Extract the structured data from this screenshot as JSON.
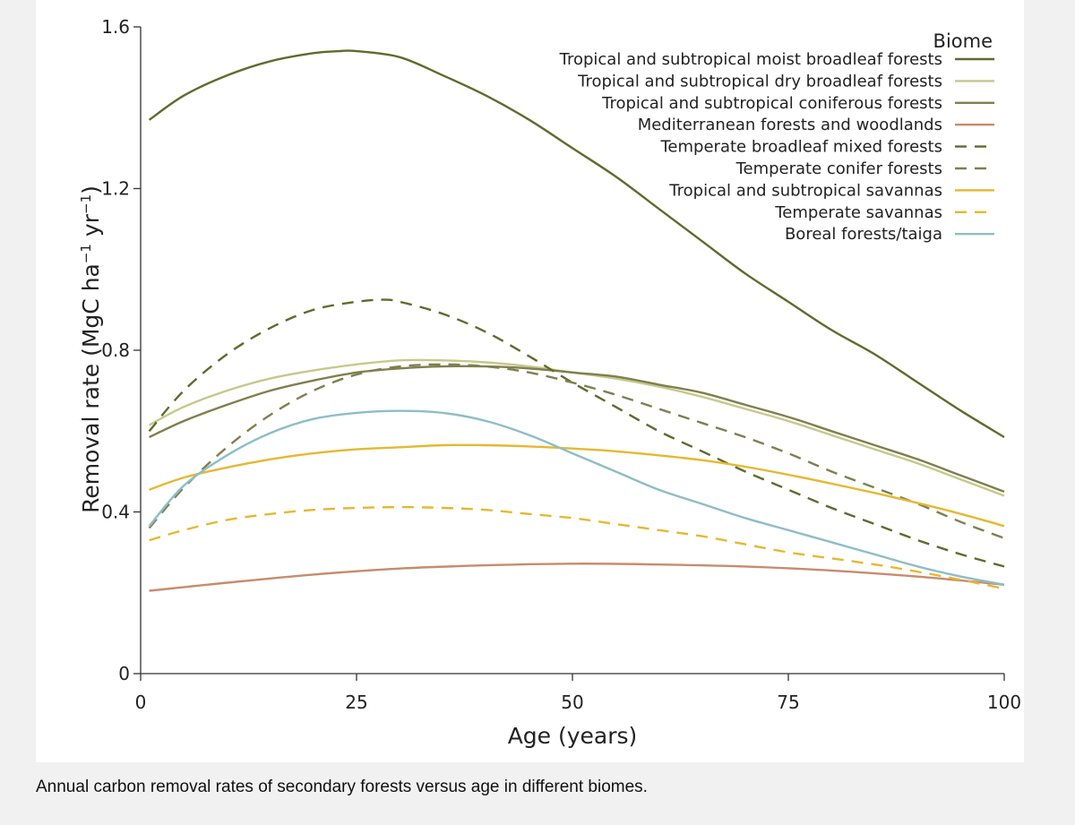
{
  "caption": "Annual carbon removal rates of secondary forests versus age in different biomes.",
  "chart_data": {
    "type": "line",
    "xlabel": "Age (years)",
    "ylabel_main": "Removal rate (MgC ha",
    "ylabel_sup1": "−1",
    "ylabel_mid": " yr",
    "ylabel_sup2": "−1",
    "ylabel_end": ")",
    "xlim": [
      0,
      100
    ],
    "ylim": [
      0,
      1.6
    ],
    "x_ticks": [
      {
        "value": 0,
        "label": "0"
      },
      {
        "value": 25,
        "label": "25"
      },
      {
        "value": 50,
        "label": "50"
      },
      {
        "value": 75,
        "label": "75"
      },
      {
        "value": 100,
        "label": "100"
      }
    ],
    "y_ticks": [
      {
        "value": 0,
        "label": "0"
      },
      {
        "value": 0.4,
        "label": "0.4"
      },
      {
        "value": 0.8,
        "label": "0.8"
      },
      {
        "value": 1.2,
        "label": "1.2"
      },
      {
        "value": 1.6,
        "label": "1.6"
      }
    ],
    "legend_title": "Biome",
    "legend_position": "top-right",
    "series": [
      {
        "name": "Tropical and subtropical moist broadleaf forests",
        "color": "#5f6b2c",
        "dash": "solid",
        "x": [
          1,
          5,
          10,
          15,
          20,
          23,
          25,
          30,
          35,
          40,
          45,
          50,
          55,
          60,
          65,
          70,
          75,
          80,
          85,
          90,
          95,
          100
        ],
        "y": [
          1.37,
          1.43,
          1.48,
          1.515,
          1.535,
          1.54,
          1.54,
          1.525,
          1.48,
          1.43,
          1.37,
          1.3,
          1.23,
          1.15,
          1.07,
          0.99,
          0.92,
          0.85,
          0.79,
          0.72,
          0.65,
          0.585
        ]
      },
      {
        "name": "Tropical and subtropical dry broadleaf forests",
        "color": "#c5c98a",
        "dash": "solid",
        "x": [
          1,
          5,
          10,
          15,
          20,
          25,
          30,
          35,
          40,
          45,
          50,
          55,
          60,
          65,
          70,
          75,
          80,
          85,
          90,
          95,
          100
        ],
        "y": [
          0.615,
          0.66,
          0.7,
          0.73,
          0.75,
          0.765,
          0.775,
          0.775,
          0.77,
          0.76,
          0.745,
          0.73,
          0.71,
          0.685,
          0.655,
          0.625,
          0.59,
          0.555,
          0.52,
          0.48,
          0.44
        ]
      },
      {
        "name": "Tropical and subtropical coniferous forests",
        "color": "#7f7f4e",
        "dash": "solid",
        "x": [
          1,
          5,
          10,
          15,
          20,
          25,
          30,
          35,
          40,
          45,
          50,
          55,
          60,
          65,
          70,
          75,
          80,
          85,
          90,
          95,
          100
        ],
        "y": [
          0.585,
          0.625,
          0.665,
          0.7,
          0.725,
          0.745,
          0.755,
          0.76,
          0.76,
          0.755,
          0.745,
          0.735,
          0.715,
          0.695,
          0.665,
          0.635,
          0.6,
          0.565,
          0.53,
          0.49,
          0.45
        ]
      },
      {
        "name": "Mediterranean forests and woodlands",
        "color": "#c98b6e",
        "dash": "solid",
        "x": [
          1,
          10,
          20,
          30,
          40,
          50,
          60,
          70,
          80,
          90,
          100
        ],
        "y": [
          0.205,
          0.225,
          0.245,
          0.26,
          0.268,
          0.272,
          0.27,
          0.265,
          0.255,
          0.24,
          0.22
        ]
      },
      {
        "name": "Temperate broadleaf mixed forests",
        "color": "#5f6b2c",
        "dash": "dashed",
        "x": [
          1,
          5,
          10,
          15,
          20,
          25,
          28,
          30,
          35,
          40,
          45,
          50,
          55,
          60,
          65,
          70,
          75,
          80,
          85,
          90,
          95,
          100
        ],
        "y": [
          0.6,
          0.7,
          0.79,
          0.855,
          0.9,
          0.92,
          0.925,
          0.92,
          0.89,
          0.845,
          0.785,
          0.72,
          0.66,
          0.6,
          0.55,
          0.5,
          0.455,
          0.41,
          0.37,
          0.33,
          0.295,
          0.265
        ]
      },
      {
        "name": "Temperate conifer forests",
        "color": "#7f7f4e",
        "dash": "dashed",
        "x": [
          1,
          5,
          10,
          15,
          20,
          25,
          30,
          35,
          40,
          45,
          50,
          55,
          60,
          65,
          70,
          75,
          80,
          85,
          90,
          95,
          100
        ],
        "y": [
          0.36,
          0.46,
          0.56,
          0.64,
          0.7,
          0.74,
          0.76,
          0.765,
          0.76,
          0.745,
          0.72,
          0.69,
          0.655,
          0.62,
          0.585,
          0.545,
          0.5,
          0.46,
          0.42,
          0.375,
          0.335
        ]
      },
      {
        "name": "Tropical and subtropical savannas",
        "color": "#e6b830",
        "dash": "solid",
        "x": [
          1,
          5,
          10,
          15,
          20,
          25,
          30,
          35,
          40,
          45,
          50,
          55,
          60,
          65,
          70,
          75,
          80,
          85,
          90,
          95,
          100
        ],
        "y": [
          0.455,
          0.485,
          0.51,
          0.53,
          0.545,
          0.555,
          0.56,
          0.565,
          0.565,
          0.562,
          0.557,
          0.55,
          0.54,
          0.528,
          0.512,
          0.492,
          0.47,
          0.447,
          0.422,
          0.395,
          0.365
        ]
      },
      {
        "name": "Temperate savannas",
        "color": "#e6b830",
        "dash": "dashed",
        "x": [
          1,
          5,
          10,
          15,
          20,
          25,
          30,
          35,
          40,
          45,
          50,
          55,
          60,
          65,
          70,
          75,
          80,
          85,
          90,
          95,
          100
        ],
        "y": [
          0.33,
          0.355,
          0.38,
          0.395,
          0.405,
          0.41,
          0.412,
          0.41,
          0.405,
          0.395,
          0.385,
          0.37,
          0.355,
          0.34,
          0.32,
          0.3,
          0.285,
          0.27,
          0.252,
          0.232,
          0.21
        ]
      },
      {
        "name": "Boreal forests/taiga",
        "color": "#8dbdc8",
        "dash": "solid",
        "x": [
          1,
          5,
          10,
          15,
          20,
          25,
          30,
          35,
          40,
          45,
          50,
          55,
          60,
          65,
          70,
          75,
          80,
          85,
          90,
          95,
          100
        ],
        "y": [
          0.365,
          0.465,
          0.54,
          0.595,
          0.63,
          0.645,
          0.65,
          0.645,
          0.625,
          0.59,
          0.545,
          0.5,
          0.455,
          0.42,
          0.385,
          0.355,
          0.325,
          0.295,
          0.265,
          0.24,
          0.22
        ]
      }
    ]
  }
}
